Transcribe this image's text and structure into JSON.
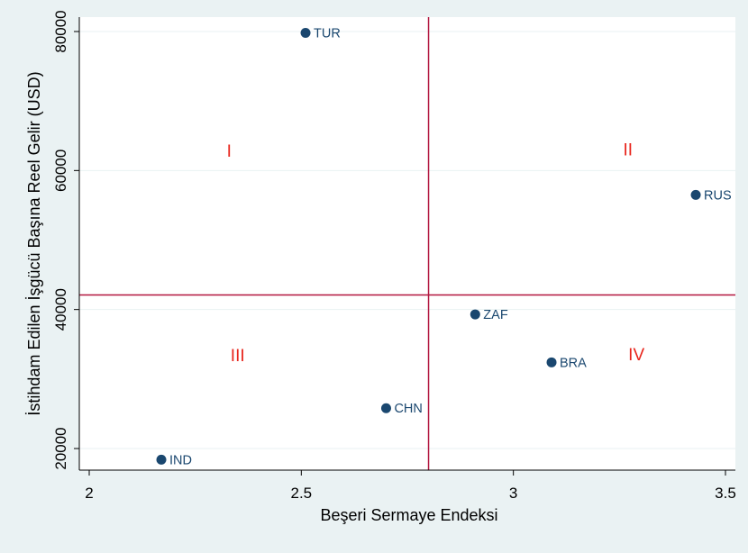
{
  "chart_data": {
    "type": "scatter",
    "title": "",
    "xlabel": "Beşeri Sermaye Endeksi",
    "ylabel": "İstihdam Edilen İşgücü Başına Reel Gelir (USD)",
    "xlim": [
      2,
      3.53
    ],
    "ylim": [
      17200,
      82000
    ],
    "xticks": [
      2,
      2.5,
      3,
      3.5
    ],
    "xtick_labels": [
      "2",
      "2.5",
      "3",
      "3.5"
    ],
    "yticks": [
      20000,
      40000,
      60000,
      80000
    ],
    "ytick_labels": [
      "20000",
      "40000",
      "60000",
      "80000"
    ],
    "grid": "horizontal",
    "points": [
      {
        "label": "TUR",
        "x": 2.51,
        "y": 79800
      },
      {
        "label": "RUS",
        "x": 3.43,
        "y": 56500
      },
      {
        "label": "ZAF",
        "x": 2.91,
        "y": 39300
      },
      {
        "label": "BRA",
        "x": 3.09,
        "y": 32400
      },
      {
        "label": "CHN",
        "x": 2.7,
        "y": 25800
      },
      {
        "label": "IND",
        "x": 2.17,
        "y": 18400
      }
    ],
    "reference_lines": {
      "x": 2.8,
      "y": 42100
    },
    "quadrant_labels": [
      {
        "text": "I",
        "x": 2.33,
        "y": 62000
      },
      {
        "text": "II",
        "x": 3.27,
        "y": 62200
      },
      {
        "text": "III",
        "x": 2.35,
        "y": 32600
      },
      {
        "text": "IV",
        "x": 3.29,
        "y": 32700
      }
    ],
    "colors": {
      "background": "#eaf2f3",
      "plot_background": "#ffffff",
      "marker": "#1a476f",
      "label": "#1a476f",
      "reference_line": "#b2163f",
      "quadrant_label": "#e8241b",
      "grid": "#eaf2f3",
      "axis": "#000000"
    }
  }
}
